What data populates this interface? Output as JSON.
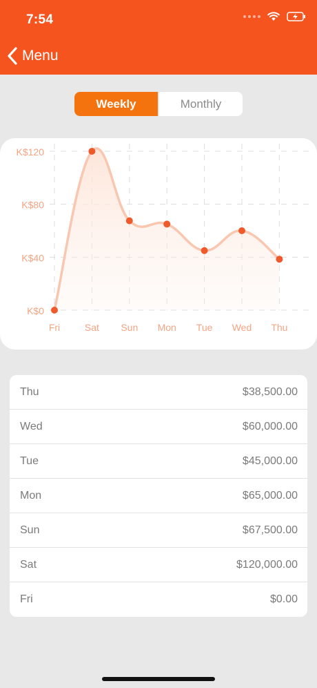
{
  "status_bar": {
    "time": "7:54"
  },
  "nav": {
    "back_label": "Menu"
  },
  "segments": [
    {
      "label": "Weekly",
      "active": true
    },
    {
      "label": "Monthly",
      "active": false
    }
  ],
  "chart_data": {
    "type": "area",
    "categories": [
      "Fri",
      "Sat",
      "Sun",
      "Mon",
      "Tue",
      "Wed",
      "Thu"
    ],
    "values": [
      0,
      120000,
      67500,
      65000,
      45000,
      60000,
      38500
    ],
    "y_ticks": [
      {
        "value": 0,
        "label": "K$0"
      },
      {
        "value": 40000,
        "label": "K$40"
      },
      {
        "value": 80000,
        "label": "K$80"
      },
      {
        "value": 120000,
        "label": "K$120"
      }
    ],
    "ylim": [
      0,
      120000
    ],
    "grid": true,
    "line_color": "#f9c6b0",
    "point_color": "#ee5a2c",
    "label_color": "#f5a483"
  },
  "table": {
    "rows": [
      {
        "day": "Thu",
        "amount": "$38,500.00"
      },
      {
        "day": "Wed",
        "amount": "$60,000.00"
      },
      {
        "day": "Tue",
        "amount": "$45,000.00"
      },
      {
        "day": "Mon",
        "amount": "$65,000.00"
      },
      {
        "day": "Sun",
        "amount": "$67,500.00"
      },
      {
        "day": "Sat",
        "amount": "$120,000.00"
      },
      {
        "day": "Fri",
        "amount": "$0.00"
      }
    ]
  }
}
